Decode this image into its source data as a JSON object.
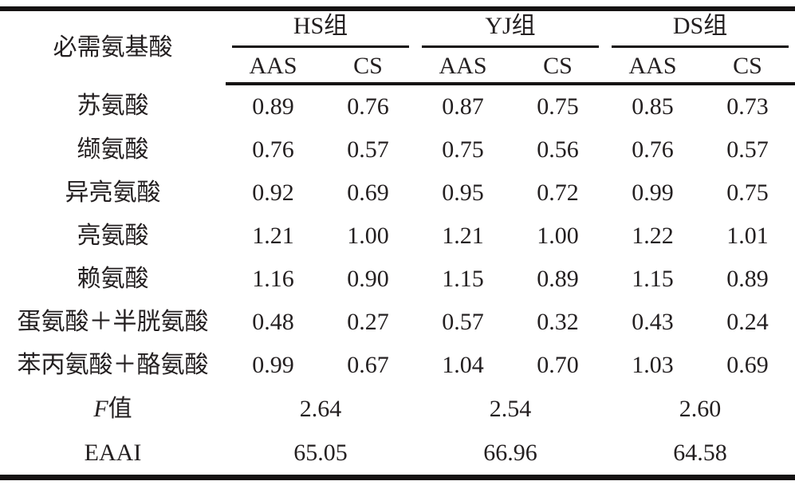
{
  "table": {
    "header": {
      "row_label": "必需氨基酸",
      "groups": [
        {
          "label": "HS组"
        },
        {
          "label": "YJ组"
        },
        {
          "label": "DS组"
        }
      ],
      "subheaders": [
        "AAS",
        "CS"
      ]
    },
    "rows": [
      {
        "label": "苏氨酸",
        "values": [
          "0.89",
          "0.76",
          "0.87",
          "0.75",
          "0.85",
          "0.73"
        ]
      },
      {
        "label": "缬氨酸",
        "values": [
          "0.76",
          "0.57",
          "0.75",
          "0.56",
          "0.76",
          "0.57"
        ]
      },
      {
        "label": "异亮氨酸",
        "values": [
          "0.92",
          "0.69",
          "0.95",
          "0.72",
          "0.99",
          "0.75"
        ]
      },
      {
        "label": "亮氨酸",
        "values": [
          "1.21",
          "1.00",
          "1.21",
          "1.00",
          "1.22",
          "1.01"
        ]
      },
      {
        "label": "赖氨酸",
        "values": [
          "1.16",
          "0.90",
          "1.15",
          "0.89",
          "1.15",
          "0.89"
        ]
      },
      {
        "label": "蛋氨酸＋半胱氨酸",
        "values": [
          "0.48",
          "0.27",
          "0.57",
          "0.32",
          "0.43",
          "0.24"
        ]
      },
      {
        "label": "苯丙氨酸＋酪氨酸",
        "values": [
          "0.99",
          "0.67",
          "1.04",
          "0.70",
          "1.03",
          "0.69"
        ]
      }
    ],
    "f_row": {
      "label_italic": "F",
      "label_regular": "值",
      "values": [
        "2.64",
        "2.54",
        "2.60"
      ]
    },
    "eaai_row": {
      "label": "EAAI",
      "values": [
        "65.05",
        "66.96",
        "64.58"
      ]
    },
    "colors": {
      "text": "#231f20",
      "rule": "#151212",
      "background": "#ffffff"
    }
  }
}
